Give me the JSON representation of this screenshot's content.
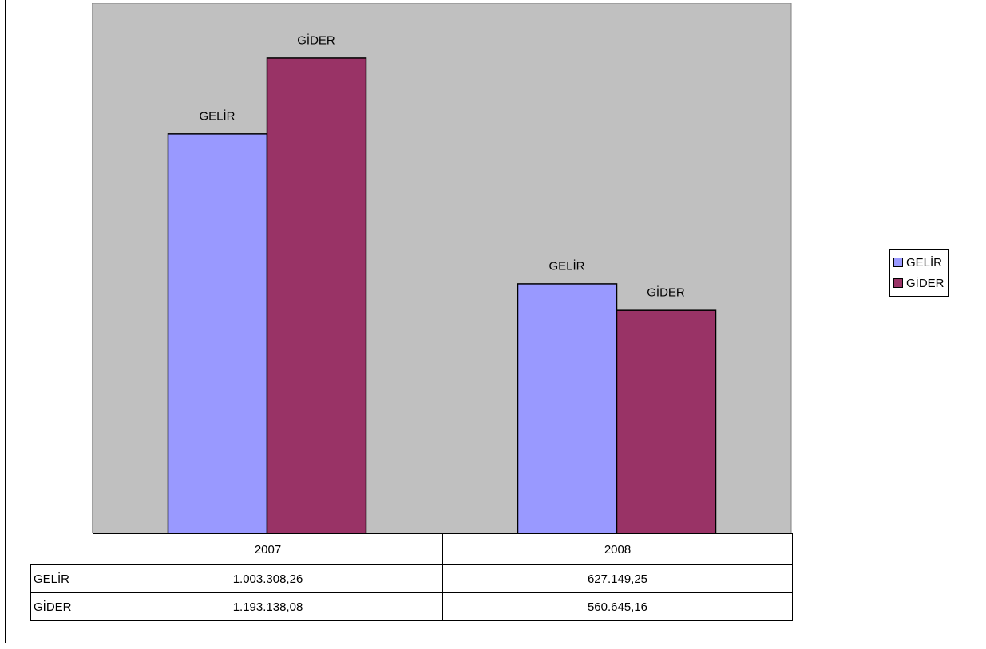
{
  "chart_data": {
    "type": "bar",
    "categories": [
      "2007",
      "2008"
    ],
    "series": [
      {
        "name": "GELİR",
        "color": "#9999ff",
        "values": [
          1003308.26,
          627149.25
        ]
      },
      {
        "name": "GİDER",
        "color": "#993366",
        "values": [
          1193138.08,
          560645.16
        ]
      }
    ],
    "plot_background": "#c0c0c0",
    "ylim": [
      0,
      1330000
    ],
    "grid": false,
    "legend_position": "right",
    "data_labels": "series name",
    "data_table": {
      "columns": [
        "2007",
        "2008"
      ],
      "rows": [
        {
          "label": "GELİR",
          "cells": [
            "1.003.308,26",
            "627.149,25"
          ]
        },
        {
          "label": "GİDER",
          "cells": [
            "1.193.138,08",
            "560.645,16"
          ]
        }
      ]
    }
  }
}
